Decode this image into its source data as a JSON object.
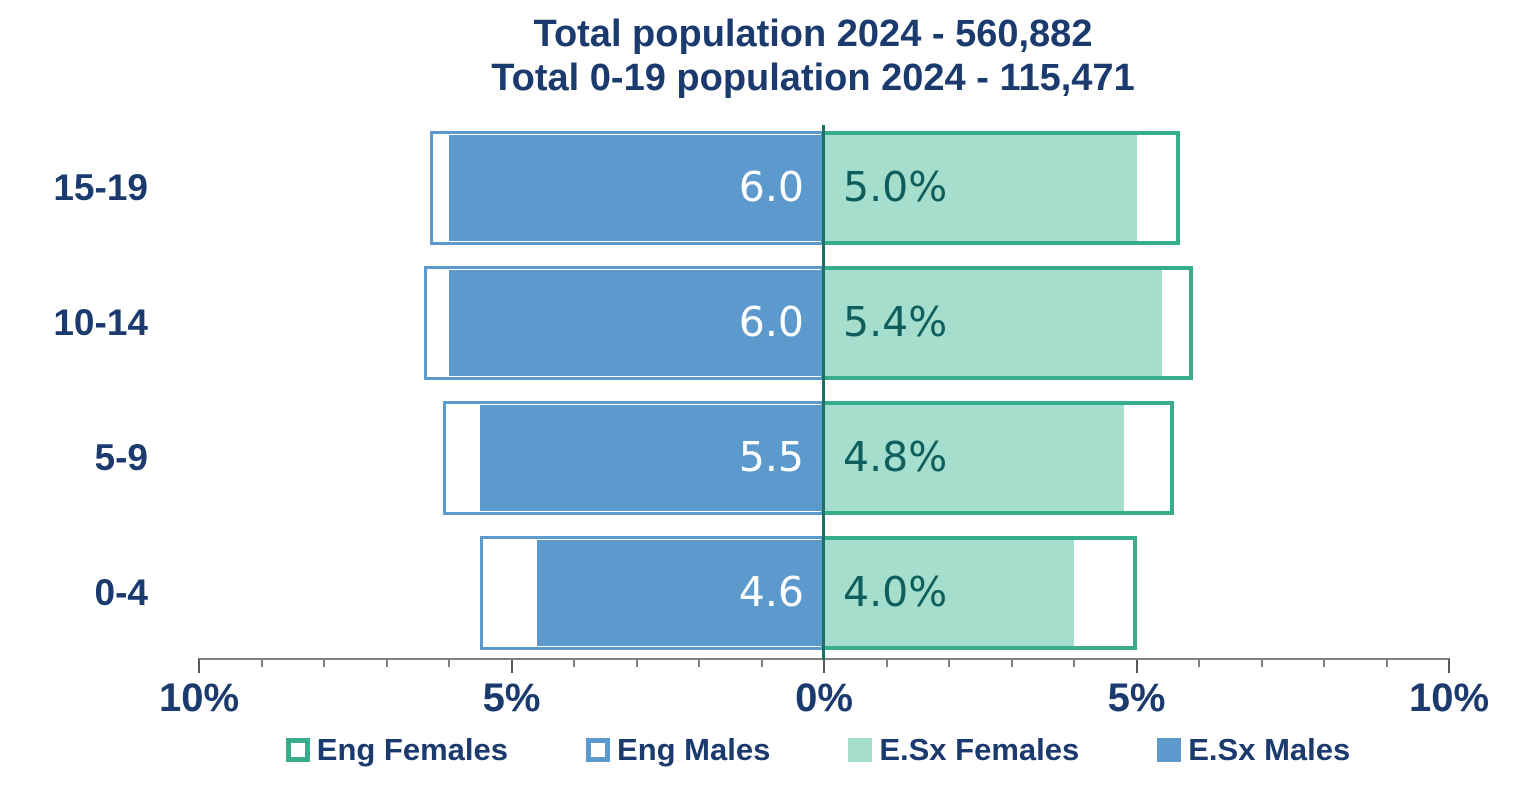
{
  "title": {
    "line1": "Total population 2024 - 560,882",
    "line2": "Total 0-19 population 2024 - 115,471"
  },
  "chart_data": {
    "type": "bar",
    "subtype": "population-pyramid",
    "title": "Total population 2024 - 560,882",
    "subtitle": "Total 0-19 population 2024 - 115,471",
    "categories": [
      "15-19",
      "10-14",
      "5-9",
      "0-4"
    ],
    "series": [
      {
        "name": "Eng Females",
        "side": "right",
        "style": "outline",
        "color": "#38AD8C",
        "values_pct": [
          5.7,
          5.9,
          5.6,
          5.0
        ]
      },
      {
        "name": "Eng Males",
        "side": "left",
        "style": "outline",
        "color": "#5C9ACE",
        "values_pct": [
          6.3,
          6.4,
          6.1,
          5.5
        ]
      },
      {
        "name": "E.Sx Females",
        "side": "right",
        "style": "fill",
        "color": "#A6DECD",
        "values_pct": [
          5.0,
          5.4,
          4.8,
          4.0
        ],
        "data_labels": [
          "5.0%",
          "5.4%",
          "4.8%",
          "4.0%"
        ],
        "label_color": "#0D5E5D"
      },
      {
        "name": "E.Sx Males",
        "side": "left",
        "style": "fill",
        "color": "#5C9ACE",
        "values_pct": [
          6.0,
          6.0,
          5.5,
          4.6
        ],
        "data_labels": [
          "6.0",
          "6.0",
          "5.5",
          "4.6"
        ],
        "label_color": "#FFFFFF"
      }
    ],
    "x_axis": {
      "tick_labels": [
        "10%",
        "5%",
        "0%",
        "5%",
        "10%"
      ],
      "range_pct": [
        -10,
        10
      ],
      "minor_tick_step_pct": 1,
      "major_tick_step_pct": 5
    },
    "legend": {
      "position": "bottom",
      "entries": [
        "Eng Females",
        "Eng Males",
        "E.Sx Females",
        "E.Sx Males"
      ]
    },
    "colors": {
      "navy_text": "#1B3A6E",
      "teal_value_text": "#0D5E5D",
      "center_line": "#1D7268",
      "axis_line": "#808080",
      "major_tick": "#595959",
      "blue": "#5C9ACE",
      "green_border": "#38AD8C",
      "green_fill": "#A6DECD",
      "background": "#FFFFFF"
    }
  }
}
